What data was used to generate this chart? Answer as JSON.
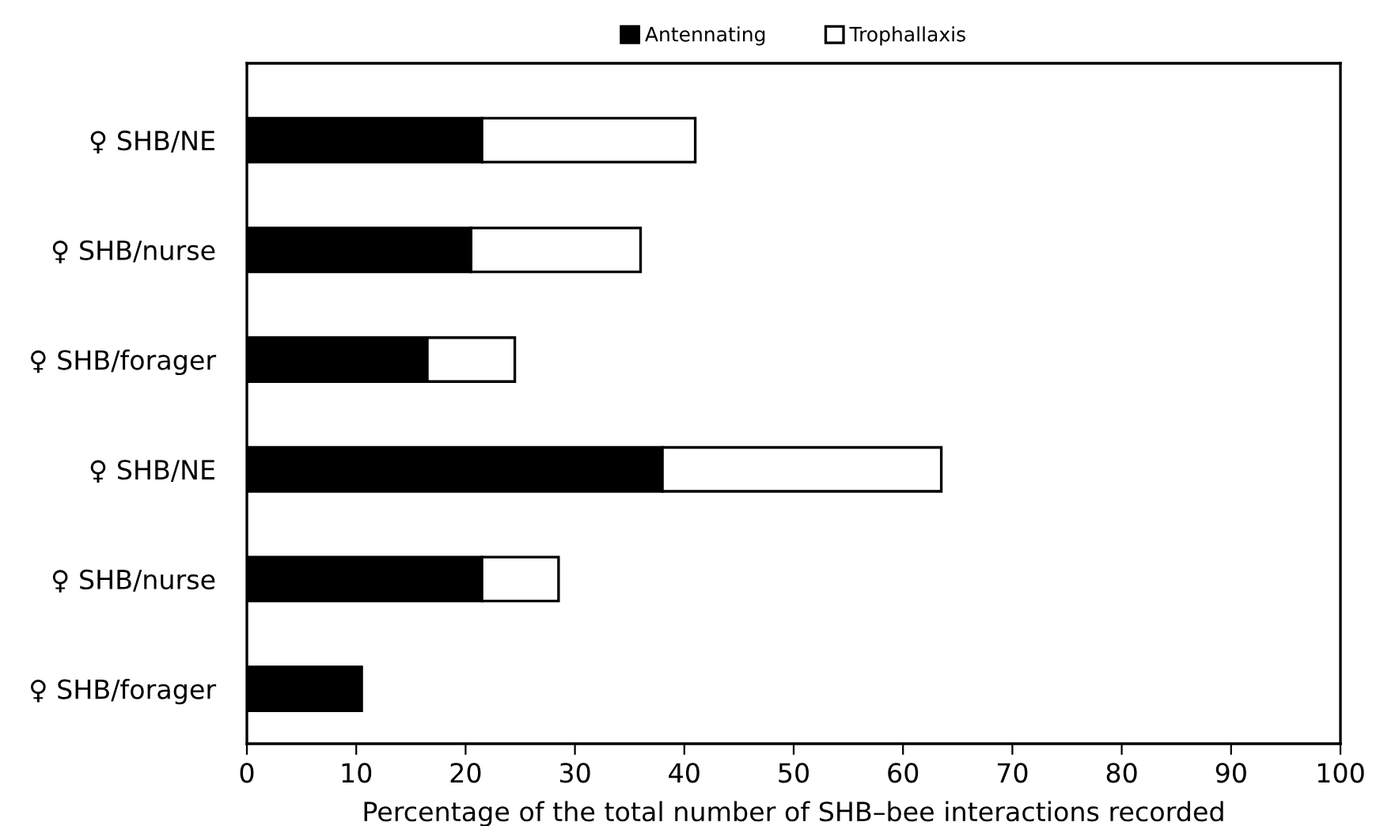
{
  "chart_data": {
    "type": "bar",
    "orientation": "horizontal",
    "stacked": true,
    "xlabel": "Percentage of the total number of SHB–bee interactions recorded",
    "categories": [
      "♀ SHB/NE",
      "♀ SHB/nurse",
      "♀ SHB/forager",
      "♀ SHB/NE",
      "♀ SHB/nurse",
      "♀ SHB/forager"
    ],
    "series": [
      {
        "name": "Antennating",
        "color": "#000000",
        "values": [
          21.5,
          20.5,
          16.5,
          38,
          21.5,
          10.5
        ]
      },
      {
        "name": "Trophallaxis",
        "color": "#ffffff",
        "values": [
          19.5,
          15.5,
          8,
          25.5,
          7,
          null
        ]
      }
    ],
    "xlim": [
      0,
      100
    ],
    "xticks": [
      0,
      10,
      20,
      30,
      40,
      50,
      60,
      70,
      80,
      90,
      100
    ],
    "grid": false,
    "legend": "top"
  }
}
